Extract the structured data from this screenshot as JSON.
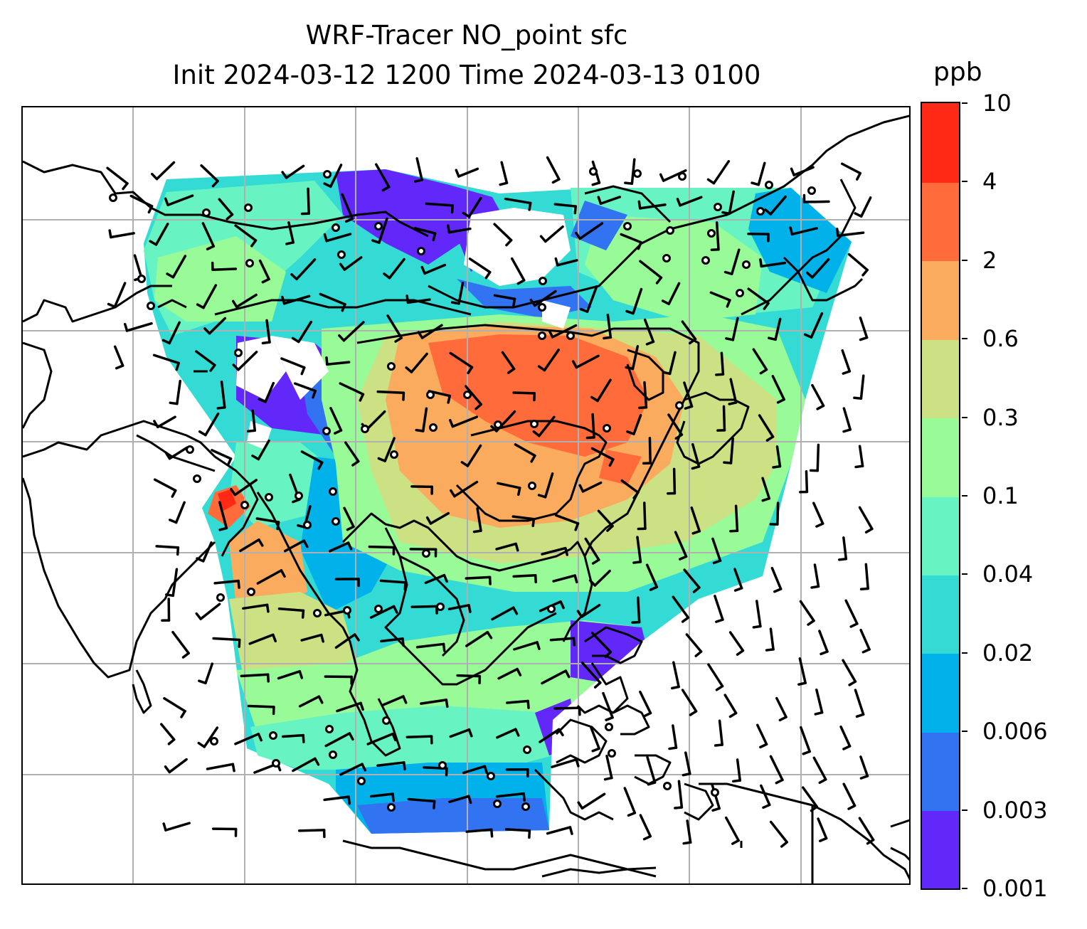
{
  "title": {
    "line1": "WRF-Tracer NO_point sfc",
    "line2": "Init 2024-03-12 1200 Time 2024-03-13 0100"
  },
  "colorbar": {
    "unit": "ppb",
    "tick_labels": [
      "0.001",
      "0.003",
      "0.006",
      "0.02",
      "0.04",
      "0.1",
      "0.3",
      "0.6",
      "2",
      "4",
      "10"
    ],
    "colors": [
      "#6228f9",
      "#3273f2",
      "#00b1ea",
      "#33dbd4",
      "#68f4c2",
      "#98fb98",
      "#cbe184",
      "#fbab5e",
      "#ff6b3a",
      "#ff2915"
    ]
  },
  "map": {
    "gridlines": true,
    "coastlines": true,
    "wind_barbs": true,
    "calm_wind_markers": true
  }
}
